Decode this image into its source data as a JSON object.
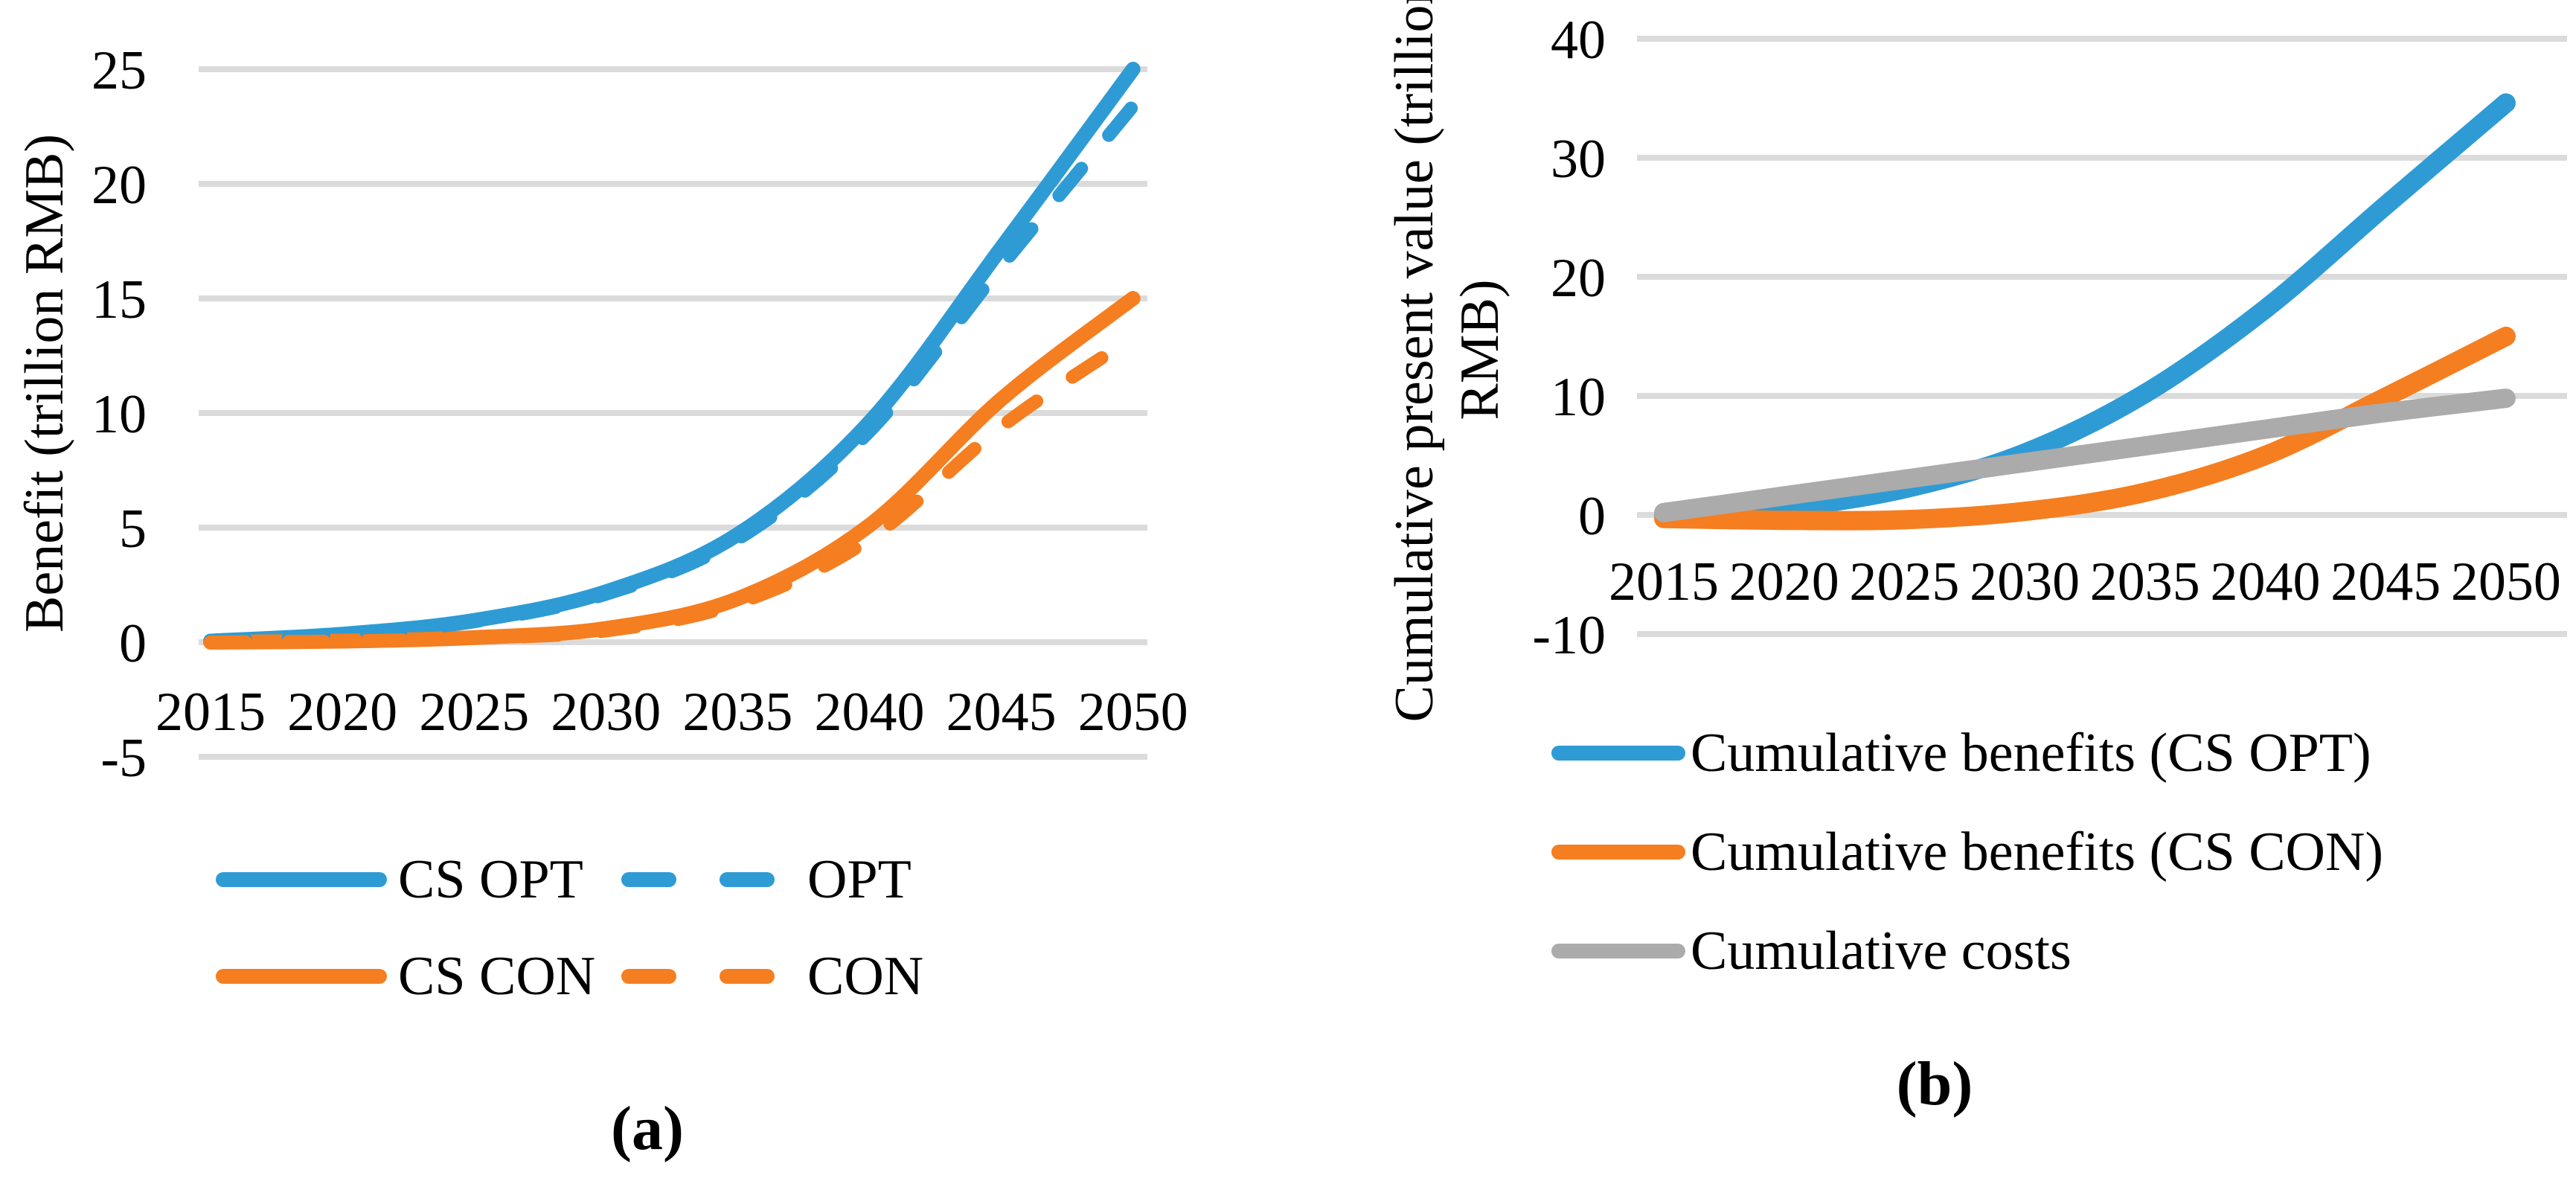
{
  "colors": {
    "blue": "#2E9BD5",
    "orange": "#F57E20",
    "gray": "#ABABAB",
    "grid": "#DBDBDB",
    "text": "#000000"
  },
  "chart_data": [
    {
      "type": "line",
      "panel": "a",
      "caption": "(a)",
      "title": "",
      "xlabel": "",
      "ylabel": "Benefit (trillion RMB)",
      "ylabel_lines": [
        "Benefit (trillion RMB)"
      ],
      "x": [
        "2015",
        "2020",
        "2025",
        "2030",
        "2035",
        "2040",
        "2045",
        "2050"
      ],
      "ylim": [
        -5,
        25
      ],
      "yticks": [
        25,
        20,
        15,
        10,
        5,
        0,
        -5
      ],
      "grid": true,
      "legend_position": "below",
      "series": [
        {
          "name": "CS OPT",
          "color": "#2E9BD5",
          "dash": false,
          "values": [
            0.05,
            0.35,
            0.95,
            2.2,
            4.7,
            9.6,
            17.2,
            25.0
          ]
        },
        {
          "name": "OPT",
          "color": "#2E9BD5",
          "dash": true,
          "values": [
            0.05,
            0.35,
            0.9,
            2.1,
            4.5,
            9.2,
            16.4,
            23.4
          ]
        },
        {
          "name": "CS CON",
          "color": "#F57E20",
          "dash": false,
          "values": [
            0.0,
            0.05,
            0.2,
            0.6,
            1.9,
            5.1,
            10.6,
            15.0
          ]
        },
        {
          "name": "CON",
          "color": "#F57E20",
          "dash": true,
          "values": [
            0.0,
            0.05,
            0.18,
            0.5,
            1.7,
            4.5,
            9.4,
            13.3
          ]
        }
      ]
    },
    {
      "type": "line",
      "panel": "b",
      "caption": "(b)",
      "title": "",
      "xlabel": "",
      "ylabel": "Cumulative present value (trillion RMB)",
      "ylabel_lines": [
        "Cumulative present value (trillion",
        "RMB)"
      ],
      "x": [
        "2015",
        "2020",
        "2025",
        "2030",
        "2035",
        "2040",
        "2045",
        "2050"
      ],
      "ylim": [
        -10,
        40
      ],
      "yticks": [
        40,
        30,
        20,
        10,
        0,
        -10
      ],
      "grid": true,
      "legend_position": "below",
      "series": [
        {
          "name": "Cumulative benefits (CS OPT)",
          "color": "#2E9BD5",
          "dash": false,
          "values": [
            0.0,
            0.6,
            2.2,
            5.2,
            10.2,
            17.3,
            26.0,
            34.6
          ]
        },
        {
          "name": "Cumulative benefits (CS CON)",
          "color": "#F57E20",
          "dash": false,
          "values": [
            -0.3,
            -0.45,
            -0.4,
            0.3,
            1.9,
            5.0,
            9.9,
            15.0
          ]
        },
        {
          "name": "Cumulative costs",
          "color": "#ABABAB",
          "dash": false,
          "values": [
            0.2,
            1.6,
            3.0,
            4.4,
            5.8,
            7.2,
            8.6,
            9.8
          ]
        }
      ]
    }
  ]
}
